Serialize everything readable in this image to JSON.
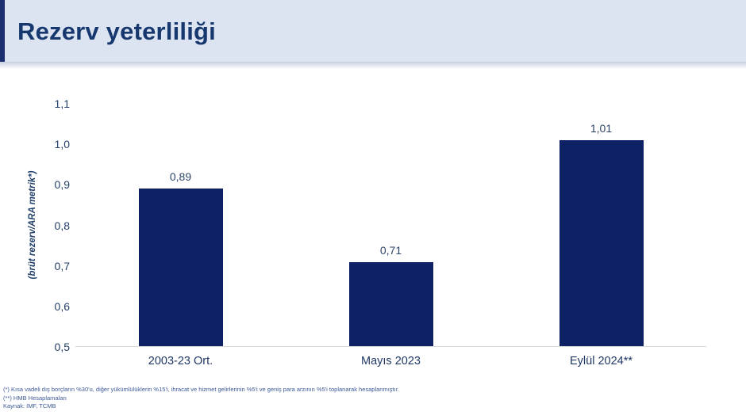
{
  "header": {
    "title": "Rezerv yeterliliği"
  },
  "colors": {
    "bar": "#0d2164",
    "header_bg": "#dce3f1",
    "header_accent_border": "#1b2f6e",
    "title_text": "#17386e",
    "axis_text": "#25406a",
    "baseline": "#d9d9d9",
    "footnote_text": "#3d5a99"
  },
  "chart_data": {
    "type": "bar",
    "categories": [
      "2003-23 Ort.",
      "Mayıs 2023",
      "Eylül 2024**"
    ],
    "values": [
      0.89,
      0.71,
      1.01
    ],
    "value_labels": [
      "0,89",
      "0,71",
      "1,01"
    ],
    "title": "",
    "xlabel": "",
    "ylabel": "(brüt rezerv/ARA metrik*)",
    "ylim": [
      0.5,
      1.1
    ],
    "yticks": [
      1.1,
      1.0,
      0.9,
      0.8,
      0.7,
      0.6,
      0.5
    ],
    "ytick_labels": [
      "1,1",
      "1,0",
      "0,9",
      "0,8",
      "0,7",
      "0,6",
      "0,5"
    ],
    "grid": false,
    "legend": false,
    "bar_color": "#0d2164"
  },
  "footnotes": {
    "line1": "(*) Kısa vadeli dış borçların %30'u, diğer yükümlülüklerin %15'i, ihracat ve hizmet gelirlerinin %5'i ve geniş para arzının %5'i toplanarak hesaplanmıştır.",
    "line2": "(**) HMB Hesaplamaları",
    "line3": "Kaynak: IMF, TCMB"
  }
}
